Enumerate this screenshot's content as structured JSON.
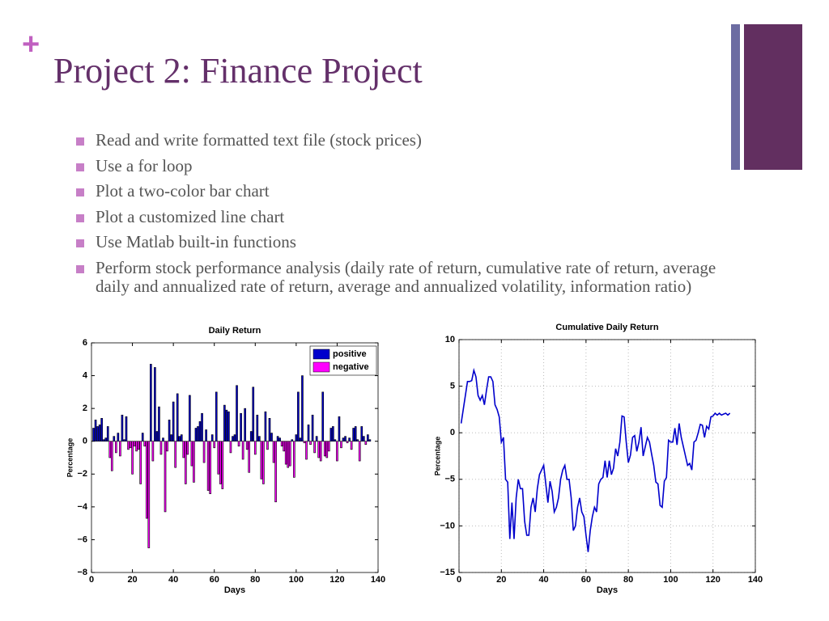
{
  "header": {
    "plus": "+",
    "title": "Project 2: Finance Project"
  },
  "bullets": [
    "Read and write formatted text file (stock prices)",
    "Use a for loop",
    "Plot a  two-color bar chart",
    "Plot a customized line chart",
    "Use Matlab built-in functions",
    "Perform stock performance analysis (daily rate of return, cumulative rate of return, average daily and annualized rate of return, average and annualized volatility, information ratio)"
  ],
  "chart_data": [
    {
      "type": "bar",
      "title": "Daily Return",
      "xlabel": "Days",
      "ylabel": "Percentage",
      "legend": [
        {
          "name": "positive",
          "color": "#0000cc"
        },
        {
          "name": "negative",
          "color": "#ff00ff"
        }
      ],
      "x": [
        1,
        2,
        3,
        4,
        5,
        6,
        7,
        8,
        9,
        10,
        11,
        12,
        13,
        14,
        15,
        16,
        17,
        18,
        19,
        20,
        21,
        22,
        23,
        24,
        25,
        26,
        27,
        28,
        29,
        30,
        31,
        32,
        33,
        34,
        35,
        36,
        37,
        38,
        39,
        40,
        41,
        42,
        43,
        44,
        45,
        46,
        47,
        48,
        49,
        50,
        51,
        52,
        53,
        54,
        55,
        56,
        57,
        58,
        59,
        60,
        61,
        62,
        63,
        64,
        65,
        66,
        67,
        68,
        69,
        70,
        71,
        72,
        73,
        74,
        75,
        76,
        77,
        78,
        79,
        80,
        81,
        82,
        83,
        84,
        85,
        86,
        87,
        88,
        89,
        90,
        91,
        92,
        93,
        94,
        95,
        96,
        97,
        98,
        99,
        100,
        101,
        102,
        103,
        104,
        105,
        106,
        107,
        108,
        109,
        110,
        111,
        112,
        113,
        114,
        115,
        116,
        117,
        118,
        119,
        120,
        121,
        122,
        123,
        124,
        125,
        126,
        127,
        128,
        129,
        130,
        131,
        132,
        133,
        134,
        135,
        136
      ],
      "values": [
        0.8,
        1.3,
        0.9,
        1.0,
        1.4,
        0.1,
        0.2,
        0.9,
        -1.0,
        -1.8,
        0.3,
        -0.7,
        0.5,
        -0.9,
        1.6,
        0.1,
        1.5,
        -0.5,
        -0.4,
        -2.0,
        -0.3,
        -0.6,
        -0.5,
        -2.6,
        0.5,
        -0.3,
        -4.7,
        -6.5,
        4.7,
        -1.2,
        4.5,
        0.6,
        2.1,
        -0.8,
        0.2,
        -4.3,
        -0.6,
        1.3,
        0.4,
        2.4,
        -1.6,
        2.9,
        0.3,
        0.4,
        -1.0,
        -2.6,
        -0.8,
        2.8,
        -1.5,
        -2.5,
        0.8,
        0.9,
        1.2,
        1.7,
        -1.3,
        0.7,
        -3.0,
        -3.2,
        0.4,
        -0.4,
        3.0,
        -2.0,
        -2.6,
        -2.9,
        2.2,
        1.9,
        1.8,
        -0.7,
        0.3,
        0.4,
        3.4,
        -0.3,
        1.7,
        -1.1,
        2.0,
        -0.5,
        -1.9,
        0.6,
        3.3,
        -0.8,
        1.6,
        0.3,
        -2.3,
        -2.6,
        1.8,
        -0.5,
        1.4,
        0.5,
        -1.3,
        -3.7,
        0.3,
        0.2,
        -0.3,
        -0.6,
        -1.4,
        -1.6,
        -1.5,
        0.1,
        -2.2,
        0.4,
        3.0,
        0.2,
        4.0,
        -0.1,
        -1.1,
        1.0,
        -0.2,
        1.6,
        -0.7,
        0.3,
        -1.0,
        -1.2,
        3.0,
        -0.9,
        -1.0,
        -0.6,
        0.8,
        0.9,
        0.1,
        -1.2,
        1.5,
        -0.4,
        0.2,
        0.3,
        -0.1,
        0.2,
        -0.5,
        0.8,
        0.9,
        0.1,
        -1.2,
        0.9,
        0.3,
        -0.2,
        0.4,
        0.1
      ],
      "xlim": [
        0,
        140
      ],
      "xticks": [
        0,
        20,
        40,
        60,
        80,
        100,
        120,
        140
      ],
      "ylim": [
        -8,
        6
      ],
      "yticks": [
        {
          "value": -8,
          "label": "−8"
        },
        {
          "value": -6,
          "label": "−6"
        },
        {
          "value": -4,
          "label": "−4"
        },
        {
          "value": -2,
          "label": "−2"
        },
        0,
        2,
        4,
        6
      ],
      "grid": false,
      "legend_position": "upper right"
    },
    {
      "type": "line",
      "title": "Cumulative Daily Return",
      "xlabel": "Days",
      "ylabel": "Percentage",
      "color": "#0000cc",
      "x": [
        1,
        2,
        3,
        4,
        5,
        6,
        7,
        8,
        9,
        10,
        11,
        12,
        13,
        14,
        15,
        16,
        17,
        18,
        19,
        20,
        21,
        22,
        23,
        24,
        25,
        26,
        27,
        28,
        29,
        30,
        31,
        32,
        33,
        34,
        35,
        36,
        37,
        38,
        39,
        40,
        41,
        42,
        43,
        44,
        45,
        46,
        47,
        48,
        49,
        50,
        51,
        52,
        53,
        54,
        55,
        56,
        57,
        58,
        59,
        60,
        61,
        62,
        63,
        64,
        65,
        66,
        67,
        68,
        69,
        70,
        71,
        72,
        73,
        74,
        75,
        76,
        77,
        78,
        79,
        80,
        81,
        82,
        83,
        84,
        85,
        86,
        87,
        88,
        89,
        90,
        91,
        92,
        93,
        94,
        95,
        96,
        97,
        98,
        99,
        100,
        101,
        102,
        103,
        104,
        105,
        106,
        107,
        108,
        109,
        110,
        111,
        112,
        113,
        114,
        115,
        116,
        117,
        118,
        119,
        120,
        121,
        122,
        123,
        124,
        125,
        126,
        127,
        128
      ],
      "values": [
        1,
        2.5,
        4,
        5.5,
        5.5,
        5.6,
        6.7,
        6,
        4,
        3.5,
        4,
        3,
        4.6,
        6,
        6,
        5.5,
        3,
        2.5,
        1.7,
        -1,
        -0.5,
        -5,
        -5.3,
        -11.4,
        -7.5,
        -11.4,
        -7,
        -5,
        -6,
        -6,
        -9.5,
        -11,
        -11,
        -8,
        -7,
        -8.5,
        -6,
        -4.5,
        -4,
        -3.5,
        -5.5,
        -7.5,
        -5.2,
        -6.3,
        -8.5,
        -8,
        -7,
        -5,
        -4,
        -3.5,
        -5,
        -5,
        -7,
        -10.5,
        -10,
        -8,
        -7,
        -8.5,
        -9,
        -11,
        -12.8,
        -10.5,
        -9,
        -8,
        -8.5,
        -5.5,
        -5,
        -4.8,
        -3,
        -4.8,
        -3,
        -4.5,
        -3.8,
        -1.7,
        -2.5,
        -1,
        1.8,
        1.7,
        -1,
        -3.2,
        -2.4,
        -0.5,
        -0.3,
        -2,
        -1,
        0.6,
        -2.5,
        -1.5,
        -0.5,
        -1,
        -2.3,
        -3.5,
        -5.3,
        -5.5,
        -7.8,
        -8,
        -5.2,
        -4.8,
        -0.8,
        -1,
        -1,
        0.5,
        -1.3,
        1,
        -0.5,
        -1.5,
        -2.5,
        -3.5,
        -3.3,
        -4,
        -1,
        -0.8,
        0,
        0.9,
        0.8,
        -0.5,
        0.7,
        0.4,
        1.7,
        1.8,
        2.1,
        1.9,
        2.1,
        1.9,
        2.0,
        2.1,
        1.9,
        2.1
      ],
      "xlim": [
        0,
        140
      ],
      "xticks": [
        0,
        20,
        40,
        60,
        80,
        100,
        120,
        140
      ],
      "ylim": [
        -15,
        10
      ],
      "yticks": [
        {
          "value": -15,
          "label": "−15"
        },
        {
          "value": -10,
          "label": "−10"
        },
        {
          "value": -5,
          "label": "−5"
        },
        0,
        5,
        10
      ],
      "grid": true
    }
  ]
}
